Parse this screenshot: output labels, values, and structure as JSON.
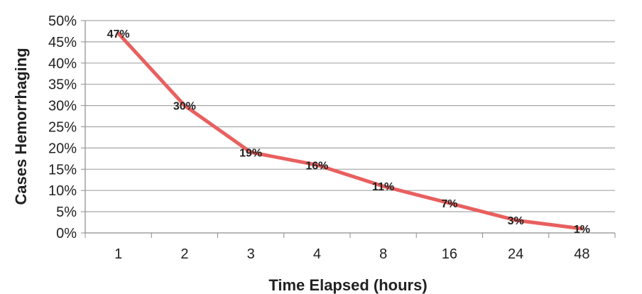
{
  "chart_data": {
    "type": "line",
    "title": "",
    "xlabel": "Time Elapsed (hours)",
    "ylabel": "Cases Hemorrhaging",
    "categories": [
      "1",
      "2",
      "3",
      "4",
      "8",
      "16",
      "24",
      "48"
    ],
    "series": [
      {
        "values": [
          47,
          30,
          19,
          16,
          11,
          7,
          3,
          1
        ]
      }
    ],
    "data_labels": [
      "47%",
      "30%",
      "19%",
      "16%",
      "11%",
      "7%",
      "3%",
      "1%"
    ],
    "ylim": [
      0,
      50
    ],
    "y_ticks": [
      "0%",
      "5%",
      "10%",
      "15%",
      "20%",
      "25%",
      "30%",
      "35%",
      "40%",
      "45%",
      "50%"
    ],
    "grid": "horizontal",
    "legend": "none",
    "colors": {
      "line": "#e8605f",
      "grid": "#a6a6a6",
      "axis": "#8c8c8c",
      "text": "#222222"
    }
  }
}
